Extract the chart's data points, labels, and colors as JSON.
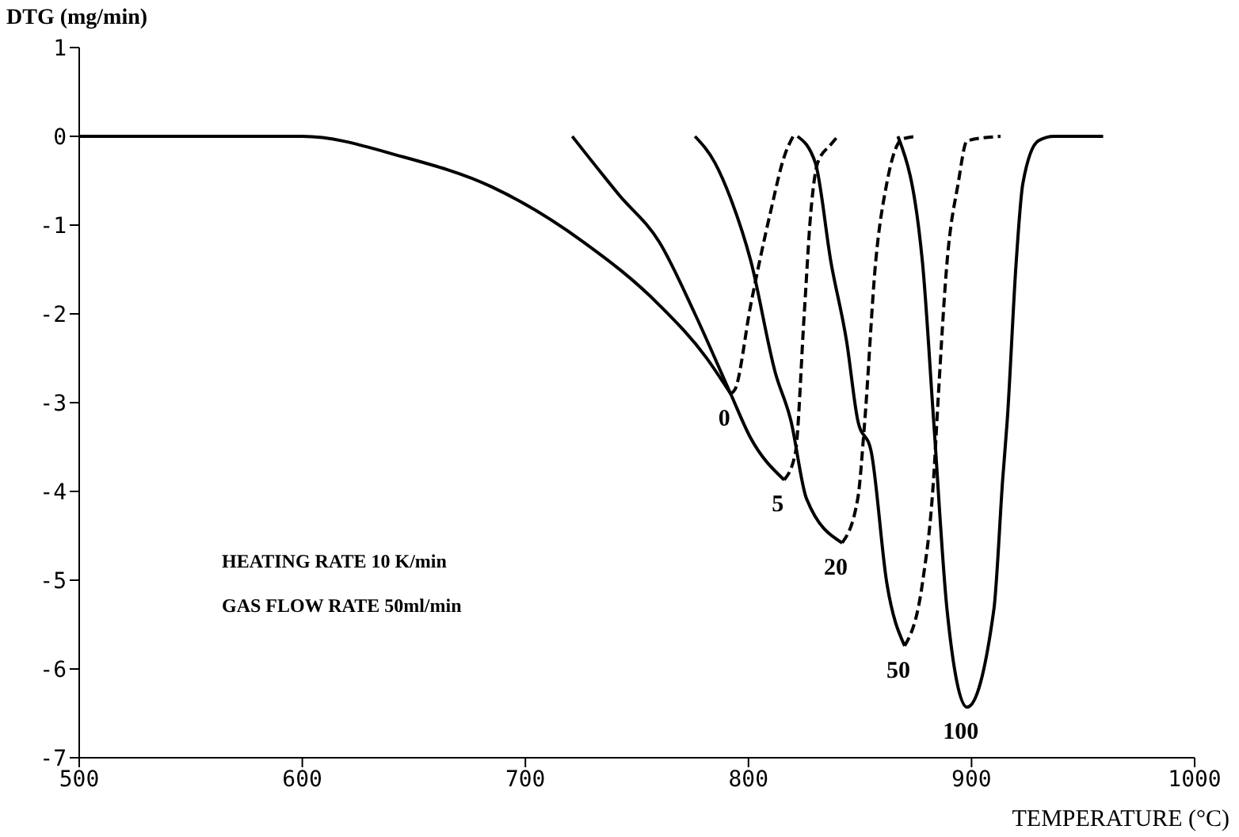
{
  "chart_data": {
    "type": "line",
    "xlabel": "TEMPERATURE (°C)",
    "ylabel": "DTG (mg/min)",
    "xlim": [
      500,
      1000
    ],
    "xticks": [
      500,
      600,
      700,
      800,
      900,
      1000
    ],
    "ylim": [
      -7,
      1
    ],
    "yticks": [
      -7,
      -6,
      -5,
      -4,
      -3,
      -2,
      -1,
      0,
      1
    ],
    "grid": false,
    "marker": "none",
    "annotations": [
      "HEATING RATE 10 K/min",
      "GAS FLOW RATE 50ml/min"
    ],
    "series": [
      {
        "name": "0",
        "color": "#000000",
        "line_style": "solid",
        "x": [
          500,
          600,
          645,
          685,
          726,
          760,
          781,
          792
        ],
        "values": [
          0,
          0,
          -0.23,
          -0.57,
          -1.19,
          -1.9,
          -2.49,
          -2.9
        ]
      },
      {
        "color": "#000000",
        "line_style": "dashed",
        "x": [
          792,
          794,
          801,
          810,
          816,
          820
        ],
        "values": [
          -2.9,
          -2.85,
          -1.9,
          -0.84,
          -0.23,
          0
        ]
      },
      {
        "name": "5",
        "color": "#000000",
        "line_style": "solid",
        "x": [
          721,
          742,
          760,
          776,
          792,
          801,
          816
        ],
        "values": [
          0,
          -0.66,
          -1.19,
          -2.0,
          -2.9,
          -3.4,
          -3.87
        ]
      },
      {
        "color": "#000000",
        "line_style": "dashed",
        "x": [
          816,
          821,
          825,
          828,
          831,
          837,
          840
        ],
        "values": [
          -3.87,
          -3.57,
          -2.0,
          -0.84,
          -0.3,
          -0.09,
          0
        ]
      },
      {
        "name": "20",
        "color": "#000000",
        "line_style": "solid",
        "x": [
          776,
          785,
          792,
          801,
          812,
          819,
          826,
          842
        ],
        "values": [
          0,
          -0.3,
          -0.7,
          -1.4,
          -2.66,
          -3.2,
          -4.08,
          -4.58
        ]
      },
      {
        "color": "#000000",
        "line_style": "dashed",
        "x": [
          842,
          849,
          852,
          857,
          862,
          869,
          876
        ],
        "values": [
          -4.58,
          -4.08,
          -3.25,
          -1.42,
          -0.53,
          -0.03,
          0
        ]
      },
      {
        "name": "50",
        "color": "#000000",
        "line_style": "solid",
        "x": [
          822,
          830,
          837,
          844,
          849,
          855,
          862,
          870
        ],
        "values": [
          0,
          -0.3,
          -1.42,
          -2.31,
          -3.2,
          -3.55,
          -5.03,
          -5.74
        ]
      },
      {
        "color": "#000000",
        "line_style": "dashed",
        "x": [
          870,
          878,
          883,
          885,
          889,
          894,
          898,
          913
        ],
        "values": [
          -5.74,
          -5.03,
          -3.85,
          -2.97,
          -1.42,
          -0.53,
          -0.05,
          0
        ]
      },
      {
        "name": "100",
        "color": "#000000",
        "line_style": "solid",
        "x": [
          867,
          878,
          883,
          889,
          898,
          910,
          914,
          916,
          920,
          923,
          930,
          937,
          959
        ],
        "values": [
          0,
          -1.42,
          -3.2,
          -5.33,
          -6.43,
          -5.33,
          -3.85,
          -3.2,
          -1.42,
          -0.53,
          -0.05,
          0,
          0
        ]
      }
    ]
  }
}
